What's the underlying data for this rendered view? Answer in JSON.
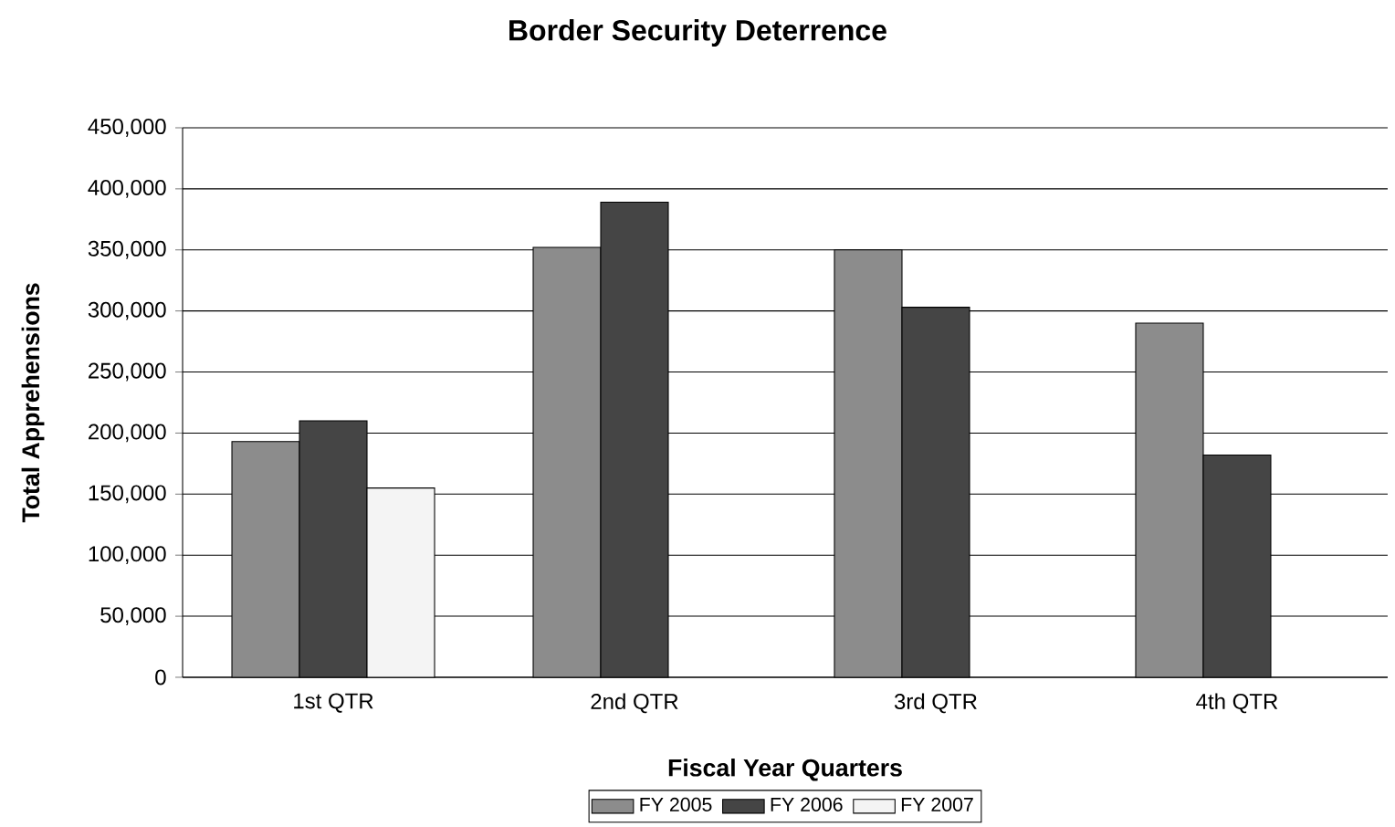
{
  "chart_data": {
    "type": "bar",
    "title": "Border Security Deterrence",
    "xlabel": "Fiscal Year Quarters",
    "ylabel": "Total Apprehensions",
    "categories": [
      "1st QTR",
      "2nd QTR",
      "3rd QTR",
      "4th QTR"
    ],
    "series": [
      {
        "name": "FY 2005",
        "color": "#8c8c8c",
        "values": [
          193000,
          352000,
          350000,
          290000
        ]
      },
      {
        "name": "FY 2006",
        "color": "#454545",
        "values": [
          210000,
          389000,
          303000,
          182000
        ]
      },
      {
        "name": "FY 2007",
        "color": "#f4f4f4",
        "values": [
          155000,
          null,
          null,
          null
        ]
      }
    ],
    "ylim": [
      0,
      450000
    ],
    "yticks": [
      {
        "value": 0,
        "label": "0"
      },
      {
        "value": 50000,
        "label": "50,000"
      },
      {
        "value": 100000,
        "label": "100,000"
      },
      {
        "value": 150000,
        "label": "150,000"
      },
      {
        "value": 200000,
        "label": "200,000"
      },
      {
        "value": 250000,
        "label": "250,000"
      },
      {
        "value": 300000,
        "label": "300,000"
      },
      {
        "value": 350000,
        "label": "350,000"
      },
      {
        "value": 400000,
        "label": "400,000"
      },
      {
        "value": 450000,
        "label": "450,000"
      }
    ],
    "grid": "y",
    "legend": "bottom"
  }
}
